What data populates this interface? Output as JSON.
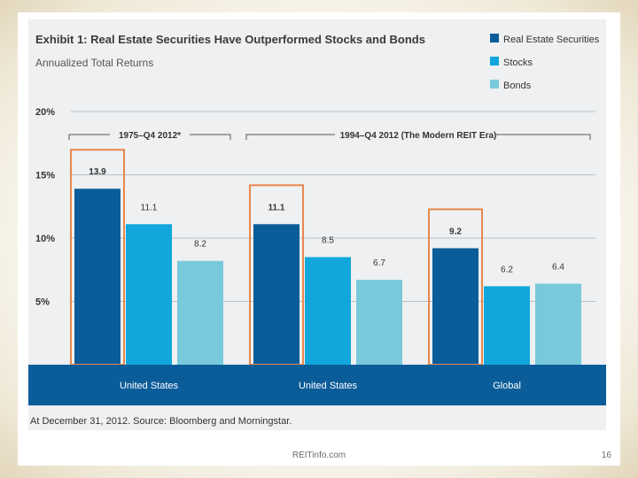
{
  "colors": {
    "real_estate": "#0b5d9a",
    "stocks": "#12a7dc",
    "bonds": "#79c9dc",
    "highlight": "#e8874d",
    "band": "#0b5d9a",
    "panel": "#eef0f1",
    "text": "#3a3a3a"
  },
  "chart_data": {
    "type": "bar",
    "title": "Exhibit 1: Real Estate Securities Have Outperformed Stocks and Bonds",
    "subtitle": "Annualized Total Returns",
    "y_tick_labels": [
      "20%",
      "15%",
      "10%",
      "5%"
    ],
    "y_ticks": [
      20,
      15,
      10,
      5
    ],
    "ylim": [
      0,
      20
    ],
    "categories": [
      "United States",
      "United States",
      "Global"
    ],
    "series": [
      {
        "name": "Real Estate Securities",
        "values": [
          13.9,
          11.1,
          9.2
        ],
        "labels": [
          "13.9",
          "11.1",
          "9.2"
        ]
      },
      {
        "name": "Stocks",
        "values": [
          11.1,
          8.5,
          6.2
        ],
        "labels": [
          "11.1",
          "8.5",
          "6.2"
        ]
      },
      {
        "name": "Bonds",
        "values": [
          8.2,
          6.7,
          6.4
        ],
        "labels": [
          "8.2",
          "6.7",
          "6.4"
        ]
      }
    ],
    "period_labels": [
      "1975–Q4 2012*",
      "1994–Q4 2012 (The Modern REIT Era)"
    ],
    "source": "At December 31, 2012. Source: Bloomberg and Morningstar.",
    "legend_position": "top-right",
    "highlighted_series": "Real Estate Securities"
  },
  "footer": {
    "site": "REITinfo.com",
    "page": "16"
  }
}
